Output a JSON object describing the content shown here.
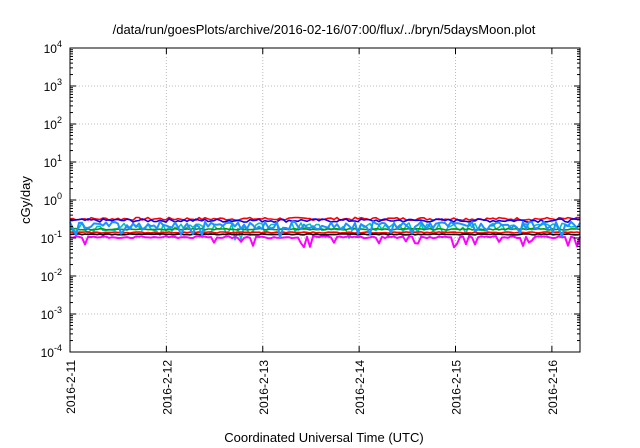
{
  "chart_data": {
    "type": "line",
    "title": "/data/run/goesPlots/archive/2016-02-16/07:00/flux/../bryn/5daysMoon.plot",
    "xlabel": "Coordinated Universal Time (UTC)",
    "ylabel": "cGy/day",
    "yscale": "log",
    "ylim": [
      0.0001,
      10000
    ],
    "xlim": [
      "2016-02-11T00:00",
      "2016-02-16T07:00"
    ],
    "grid": true,
    "x_ticks": [
      "2016-2-11",
      "2016-2-12",
      "2016-2-13",
      "2016-2-14",
      "2016-2-15",
      "2016-2-16"
    ],
    "y_ticks": [
      {
        "base": "10",
        "exp": "-4",
        "value": 0.0001
      },
      {
        "base": "10",
        "exp": "-3",
        "value": 0.001
      },
      {
        "base": "10",
        "exp": "-2",
        "value": 0.01
      },
      {
        "base": "10",
        "exp": "-1",
        "value": 0.1
      },
      {
        "base": "10",
        "exp": "0",
        "value": 1
      },
      {
        "base": "10",
        "exp": "1",
        "value": 10
      },
      {
        "base": "10",
        "exp": "2",
        "value": 100
      },
      {
        "base": "10",
        "exp": "3",
        "value": 1000
      },
      {
        "base": "10",
        "exp": "4",
        "value": 10000
      }
    ],
    "series": [
      {
        "color": "#ff0000",
        "level": 0.32,
        "variability": 0.18,
        "dips": false
      },
      {
        "color": "#0000ff",
        "level": 0.29,
        "variability": 0.2,
        "dips": false
      },
      {
        "color": "#00c0c0",
        "level": 0.2,
        "variability": 0.5,
        "dips": true
      },
      {
        "color": "#00a000",
        "level": 0.17,
        "variability": 0.08,
        "dips": false
      },
      {
        "color": "#ff0000",
        "level": 0.14,
        "variability": 0.07,
        "dips": false
      },
      {
        "color": "#000000",
        "level": 0.125,
        "variability": 0.06,
        "dips": false
      },
      {
        "color": "#ff00ff",
        "level": 0.105,
        "variability": 0.12,
        "dips": true
      },
      {
        "color": "#1e90ff",
        "level": 0.22,
        "variability": 0.45,
        "dips": true
      }
    ]
  }
}
